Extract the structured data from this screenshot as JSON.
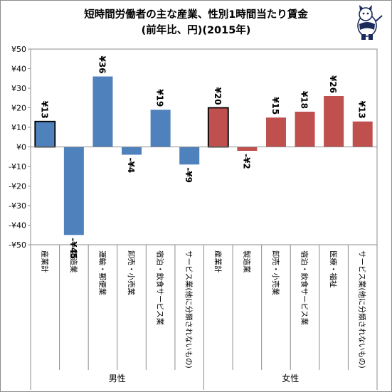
{
  "chart_data": {
    "type": "bar",
    "title": "短時間労働者の主な産業、性別1時間当たり賃金",
    "subtitle": "(前年比、円)(2015年)",
    "ylim": [
      -50,
      50
    ],
    "y_ticks": [
      "¥50",
      "¥40",
      "¥30",
      "¥20",
      "¥10",
      "¥0",
      "-¥10",
      "-¥20",
      "-¥30",
      "-¥40",
      "-¥50"
    ],
    "y_tick_values": [
      50,
      40,
      30,
      20,
      10,
      0,
      -10,
      -20,
      -30,
      -40,
      -50
    ],
    "grid": false,
    "legend": "none",
    "bars": [
      {
        "category": "産業計",
        "group": "男性",
        "value": 13,
        "label": "¥13",
        "color": "#4f81bd",
        "highlight": true
      },
      {
        "category": "製造業",
        "group": "男性",
        "value": -45,
        "label": "-¥45",
        "color": "#4f81bd",
        "highlight": false
      },
      {
        "category": "運輸・郵便業",
        "group": "男性",
        "value": 36,
        "label": "¥36",
        "color": "#4f81bd",
        "highlight": false
      },
      {
        "category": "卸売・小売業",
        "group": "男性",
        "value": -4,
        "label": "-¥4",
        "color": "#4f81bd",
        "highlight": false
      },
      {
        "category": "宿泊・飲食サービス業",
        "group": "男性",
        "value": 19,
        "label": "¥19",
        "color": "#4f81bd",
        "highlight": false
      },
      {
        "category": "サービス業(他に分類されないもの)",
        "group": "男性",
        "value": -9,
        "label": "-¥9",
        "color": "#4f81bd",
        "highlight": false
      },
      {
        "category": "産業計",
        "group": "女性",
        "value": 20,
        "label": "¥20",
        "color": "#c0504d",
        "highlight": true
      },
      {
        "category": "製造業",
        "group": "女性",
        "value": -2,
        "label": "-¥2",
        "color": "#c0504d",
        "highlight": false
      },
      {
        "category": "卸売・小売業",
        "group": "女性",
        "value": 15,
        "label": "¥15",
        "color": "#c0504d",
        "highlight": false
      },
      {
        "category": "宿泊・飲食サービス業",
        "group": "女性",
        "value": 18,
        "label": "¥18",
        "color": "#c0504d",
        "highlight": false
      },
      {
        "category": "医療・福祉",
        "group": "女性",
        "value": 26,
        "label": "¥26",
        "color": "#c0504d",
        "highlight": false
      },
      {
        "category": "サービス業(他に分類されないもの)",
        "group": "女性",
        "value": 13,
        "label": "¥13",
        "color": "#c0504d",
        "highlight": false
      }
    ],
    "groups": [
      {
        "name": "男性",
        "count": 6
      },
      {
        "name": "女性",
        "count": 6
      }
    ]
  }
}
